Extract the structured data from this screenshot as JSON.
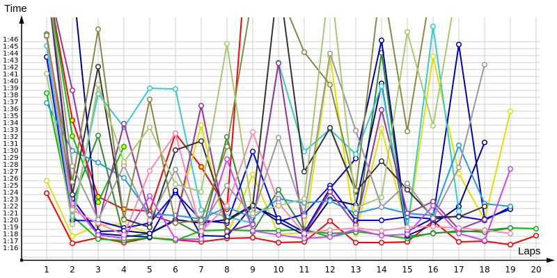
{
  "chart_data": {
    "type": "line",
    "title": "",
    "xlabel": "Laps",
    "ylabel": "Time",
    "x": [
      1,
      2,
      3,
      4,
      5,
      6,
      7,
      8,
      9,
      10,
      11,
      12,
      13,
      14,
      15,
      16,
      17,
      18,
      19,
      20
    ],
    "yticks": [
      "1:16",
      "1:17",
      "1:18",
      "1:19",
      "1:20",
      "1:21",
      "1:22",
      "1:23",
      "1:24",
      "1:25",
      "1:26",
      "1:27",
      "1:28",
      "1:29",
      "1:30",
      "1:31",
      "1:32",
      "1:33",
      "1:34",
      "1:35",
      "1:36",
      "1:37",
      "1:38",
      "1:39",
      "1:40",
      "1:41",
      "1:42",
      "1:43",
      "1:44",
      "1:45",
      "1:46"
    ],
    "ylim_seconds": [
      73.1,
      109
    ],
    "grid": true,
    "legend": "none",
    "series": [
      {
        "name": "red",
        "color": "#ff0000",
        "values": [
          83.8,
          76.6,
          77.4,
          76.7,
          77.4,
          77.1,
          76.8,
          77.3,
          77.4,
          76.7,
          76.8,
          79.8,
          76.7,
          76.7,
          76.8,
          79.8,
          76.8,
          76.9,
          76.4,
          77.7
        ]
      },
      {
        "name": "red-yellowdot",
        "color": "#ff0000",
        "dot": "#ffff00",
        "values": [
          115,
          94.3,
          83.3,
          81.5,
          81.2,
          92.4,
          87.6,
          81.5,
          130,
          null,
          null,
          null,
          null,
          null,
          null,
          null,
          null,
          null,
          null,
          null
        ]
      },
      {
        "name": "yellow",
        "color": "#e0e000",
        "values": [
          85.6,
          77.6,
          79.2,
          79.4,
          78.0,
          79.9,
          93.6,
          77.8,
          86.5,
          77.9,
          78.1,
          103.5,
          78.0,
          93.1,
          78.5,
          103.5,
          86.6,
          80.0,
          95.6,
          null
        ]
      },
      {
        "name": "green",
        "color": "#00c000",
        "values": [
          98.2,
          80.5,
          77.2,
          77.0,
          77.4,
          77.0,
          78.4,
          78.5,
          78.4,
          78.4,
          78.6,
          77.5,
          78.3,
          77.8,
          77.3,
          78.1,
          78.2,
          78.5,
          78.8,
          78.7
        ]
      },
      {
        "name": "green-2",
        "color": "#00c000",
        "dot": "#ffff00",
        "values": [
          115,
          92.0,
          82.5,
          90.5,
          null,
          null,
          null,
          null,
          null,
          null,
          null,
          null,
          null,
          null,
          null,
          null,
          null,
          null,
          null,
          null
        ]
      },
      {
        "name": "dark-green",
        "color": "#2e8b2e",
        "values": [
          106.7,
          82.5,
          92.1,
          77.5,
          78.0,
          79.8,
          77.8,
          91.9,
          78.2,
          84.3,
          78.4,
          78.0,
          78.2,
          104.0,
          77.6,
          78.0,
          78.4,
          78.2,
          78.8,
          null
        ]
      },
      {
        "name": "blue",
        "color": "#0000ff",
        "values": [
          103.4,
          79.9,
          79.8,
          78.8,
          79.5,
          83.9,
          79.9,
          79.5,
          89.8,
          79.7,
          80.8,
          84.9,
          79.9,
          79.9,
          80.4,
          80.1,
          80.5,
          79.9,
          81.8,
          null
        ]
      },
      {
        "name": "navy",
        "color": "#0000c0",
        "values": [
          115,
          83.0,
          78.0,
          77.7,
          77.5,
          84.2,
          77.7,
          77.6,
          82.0,
          80.2,
          78.2,
          84.5,
          88.8,
          105.8,
          78.3,
          80.2,
          105.2,
          80.1,
          81.5,
          null
        ]
      },
      {
        "name": "dark-navy",
        "color": "#000099",
        "values": [
          115,
          115,
          78.3,
          78.4,
          78.0,
          80.0,
          79.5,
          80.0,
          82.1,
          79.7,
          77.8,
          82.9,
          82.1,
          99.6,
          77.7,
          79.3,
          81.9,
          91.1,
          null,
          null
        ]
      },
      {
        "name": "cyan",
        "color": "#33cccc",
        "values": [
          105.0,
          80.5,
          98.1,
          93.3,
          98.9,
          98.8,
          81.4,
          80.4,
          79.5,
          102.6,
          89.8,
          93.0,
          89.4,
          99.2,
          78.5,
          107.8,
          81.2,
          null,
          null,
          null
        ]
      },
      {
        "name": "light-blue",
        "color": "#1e9af0",
        "values": [
          96.8,
          89.9,
          88.2,
          86.0,
          80.8,
          80.6,
          80.1,
          81.8,
          80.3,
          83.0,
          82.4,
          82.7,
          80.9,
          81.8,
          80.9,
          80.6,
          90.7,
          82.3,
          81.9,
          null
        ]
      },
      {
        "name": "purple",
        "color": "#993399",
        "values": [
          115,
          98.6,
          79.4,
          93.8,
          80.7,
          79.5,
          96.4,
          78.3,
          79.3,
          102.5,
          78.0,
          84.0,
          79.2,
          95.8,
          80.9,
          82.6,
          78.6,
          80.0,
          null,
          null
        ]
      },
      {
        "name": "magenta",
        "color": "#cc44ff",
        "values": [
          115,
          82.3,
          77.8,
          77.3,
          83.4,
          77.2,
          77.2,
          88.7,
          78.4,
          77.8,
          77.3,
          77.5,
          78.6,
          77.7,
          77.9,
          82.0,
          78.0,
          77.0,
          87.3,
          null
        ]
      },
      {
        "name": "pink",
        "color": "#ff88aa",
        "values": [
          106.3,
          81.4,
          79.5,
          77.8,
          87.0,
          92.4,
          78.3,
          82.0,
          92.6,
          82.4,
          78.0,
          78.5,
          78.8,
          78.4,
          78.9,
          79.0,
          78.8,
          78.5,
          78.0,
          null
        ]
      },
      {
        "name": "black",
        "color": "#333333",
        "values": [
          115,
          83.6,
          102.0,
          80.1,
          78.9,
          90.0,
          91.3,
          79.8,
          82.0,
          115,
          86.9,
          93.2,
          84.0,
          88.4,
          84.3,
          80.4,
          80.4,
          81.9,
          null,
          null
        ]
      },
      {
        "name": "gray",
        "color": "#999999",
        "values": [
          115,
          87.7,
          80.0,
          87.8,
          79.9,
          87.2,
          79.0,
          84.9,
          80.6,
          91.8,
          80.5,
          103.9,
          92.8,
          81.8,
          85.2,
          80.2,
          87.5,
          102.3,
          null,
          null
        ]
      },
      {
        "name": "olive",
        "color": "#888844",
        "values": [
          106.5,
          85.4,
          107.4,
          80.0,
          97.3,
          79.5,
          79.9,
          90.5,
          112.5,
          113.0,
          104.1,
          99.4,
          84.2,
          115,
          92.7,
          115,
          115,
          null,
          null,
          null
        ]
      },
      {
        "name": "light-olive",
        "color": "#a8c870",
        "values": [
          101.0,
          79.3,
          99.4,
          88.3,
          93.3,
          85.1,
          84.0,
          105.3,
          80.9,
          82.0,
          83.0,
          115,
          81.7,
          83.2,
          107.0,
          93.5,
          115,
          null,
          null,
          null
        ]
      }
    ]
  }
}
